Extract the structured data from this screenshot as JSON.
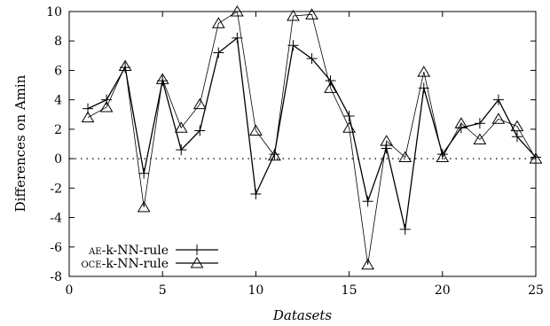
{
  "chart_data": {
    "type": "line",
    "xlabel": "Datasets",
    "ylabel": "Differences on Amin",
    "xlim": [
      0,
      25
    ],
    "ylim": [
      -8,
      10
    ],
    "xticks": [
      0,
      5,
      10,
      15,
      20,
      25
    ],
    "yticks": [
      -8,
      -6,
      -4,
      -2,
      0,
      2,
      4,
      6,
      8,
      10
    ],
    "grid": false,
    "legend_position": "bottom-left",
    "reference_line": {
      "y": 0,
      "style": "dotted"
    },
    "x": [
      1,
      2,
      3,
      4,
      5,
      6,
      7,
      8,
      9,
      10,
      11,
      12,
      13,
      14,
      15,
      16,
      17,
      18,
      19,
      20,
      21,
      22,
      23,
      24,
      25
    ],
    "series": [
      {
        "name_prefix": "AE",
        "name_suffix": "-k-NN-rule",
        "marker": "plus",
        "values": [
          3.4,
          4.0,
          6.2,
          -1.0,
          5.3,
          0.6,
          1.9,
          7.2,
          8.2,
          -2.4,
          0.3,
          7.7,
          6.8,
          5.3,
          2.9,
          -2.9,
          0.7,
          -4.8,
          4.8,
          0.3,
          2.1,
          2.4,
          4.0,
          1.5,
          0.1
        ]
      },
      {
        "name_prefix": "OCE",
        "name_suffix": "-k-NN-rule",
        "marker": "triangle",
        "values": [
          2.8,
          3.5,
          6.3,
          -3.3,
          5.4,
          2.1,
          3.7,
          9.2,
          10.0,
          1.9,
          0.2,
          9.7,
          9.8,
          4.8,
          2.1,
          -7.2,
          1.2,
          0.1,
          5.9,
          0.1,
          2.4,
          1.3,
          2.7,
          2.2,
          0.0
        ]
      }
    ]
  }
}
